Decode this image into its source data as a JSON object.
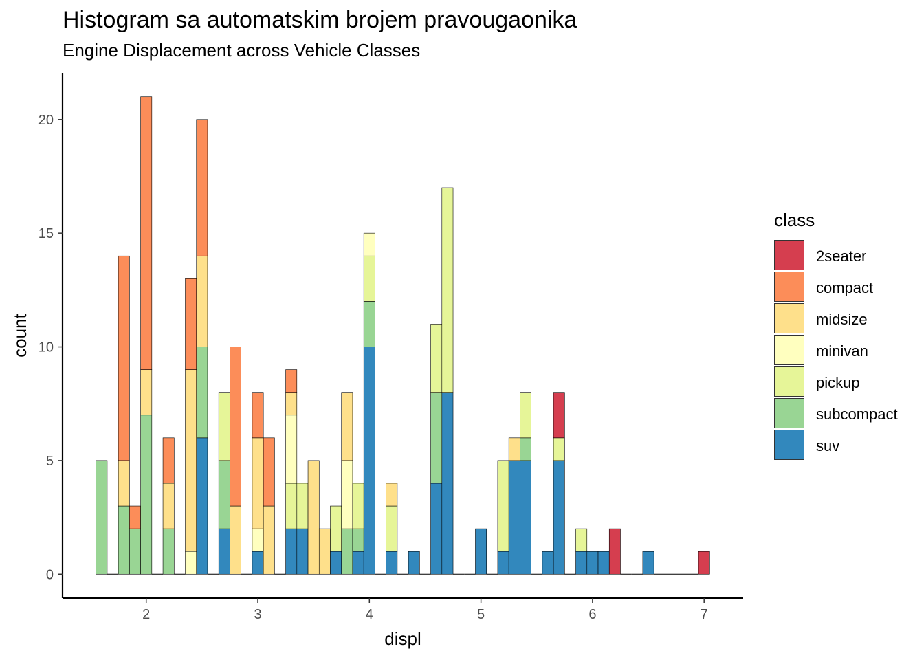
{
  "chart_data": {
    "type": "bar",
    "title": "Histogram sa automatskim brojem pravougaonika",
    "subtitle": "Engine Displacement across Vehicle Classes",
    "xlabel": "displ",
    "ylabel": "count",
    "xlim": [
      1.25,
      7.35
    ],
    "ylim": [
      -1.05,
      22.05
    ],
    "xticks": [
      2,
      3,
      4,
      5,
      6,
      7
    ],
    "yticks": [
      0,
      5,
      10,
      15,
      20
    ],
    "grid": false,
    "legend_title": "class",
    "legend_position": "right",
    "bin_width": 0.1,
    "series": [
      {
        "name": "2seater",
        "color": "#D53E4F",
        "counts": [
          [
            5.7,
            2
          ],
          [
            6.2,
            2
          ],
          [
            7.0,
            1
          ]
        ]
      },
      {
        "name": "compact",
        "color": "#FC8D59",
        "counts": [
          [
            1.8,
            9
          ],
          [
            1.9,
            1
          ],
          [
            2.0,
            12
          ],
          [
            2.2,
            2
          ],
          [
            2.4,
            4
          ],
          [
            2.5,
            6
          ],
          [
            2.8,
            7
          ],
          [
            3.0,
            2
          ],
          [
            3.1,
            3
          ],
          [
            3.3,
            1
          ]
        ]
      },
      {
        "name": "midsize",
        "color": "#FEE08B",
        "counts": [
          [
            1.8,
            2
          ],
          [
            2.0,
            2
          ],
          [
            2.2,
            2
          ],
          [
            2.4,
            8
          ],
          [
            2.5,
            4
          ],
          [
            2.8,
            3
          ],
          [
            3.0,
            4
          ],
          [
            3.1,
            3
          ],
          [
            3.3,
            1
          ],
          [
            3.5,
            5
          ],
          [
            3.6,
            2
          ],
          [
            3.8,
            3
          ],
          [
            4.2,
            1
          ],
          [
            5.3,
            1
          ]
        ]
      },
      {
        "name": "minivan",
        "color": "#FFFFBF",
        "counts": [
          [
            2.4,
            1
          ],
          [
            3.0,
            1
          ],
          [
            3.3,
            3
          ],
          [
            3.8,
            3
          ],
          [
            4.0,
            1
          ]
        ]
      },
      {
        "name": "pickup",
        "color": "#E6F598",
        "counts": [
          [
            2.7,
            3
          ],
          [
            3.3,
            2
          ],
          [
            3.4,
            2
          ],
          [
            3.7,
            2
          ],
          [
            3.9,
            2
          ],
          [
            4.0,
            2
          ],
          [
            4.2,
            2
          ],
          [
            4.6,
            3
          ],
          [
            4.7,
            9
          ],
          [
            5.2,
            4
          ],
          [
            5.4,
            2
          ],
          [
            5.7,
            1
          ],
          [
            5.9,
            1
          ]
        ]
      },
      {
        "name": "subcompact",
        "color": "#99D594",
        "counts": [
          [
            1.6,
            5
          ],
          [
            1.8,
            3
          ],
          [
            1.9,
            2
          ],
          [
            2.0,
            7
          ],
          [
            2.2,
            2
          ],
          [
            2.5,
            4
          ],
          [
            2.7,
            3
          ],
          [
            3.8,
            2
          ],
          [
            3.9,
            1
          ],
          [
            4.0,
            2
          ],
          [
            4.6,
            4
          ],
          [
            5.4,
            1
          ]
        ]
      },
      {
        "name": "suv",
        "color": "#3288BD",
        "counts": [
          [
            2.5,
            6
          ],
          [
            2.7,
            2
          ],
          [
            3.0,
            1
          ],
          [
            3.3,
            2
          ],
          [
            3.4,
            2
          ],
          [
            3.7,
            1
          ],
          [
            3.9,
            1
          ],
          [
            4.0,
            10
          ],
          [
            4.2,
            1
          ],
          [
            4.4,
            1
          ],
          [
            4.6,
            4
          ],
          [
            4.7,
            8
          ],
          [
            5.0,
            2
          ],
          [
            5.2,
            1
          ],
          [
            5.3,
            5
          ],
          [
            5.4,
            5
          ],
          [
            5.6,
            1
          ],
          [
            5.7,
            5
          ],
          [
            5.9,
            1
          ],
          [
            6.0,
            1
          ],
          [
            6.1,
            1
          ],
          [
            6.5,
            1
          ]
        ]
      }
    ]
  }
}
